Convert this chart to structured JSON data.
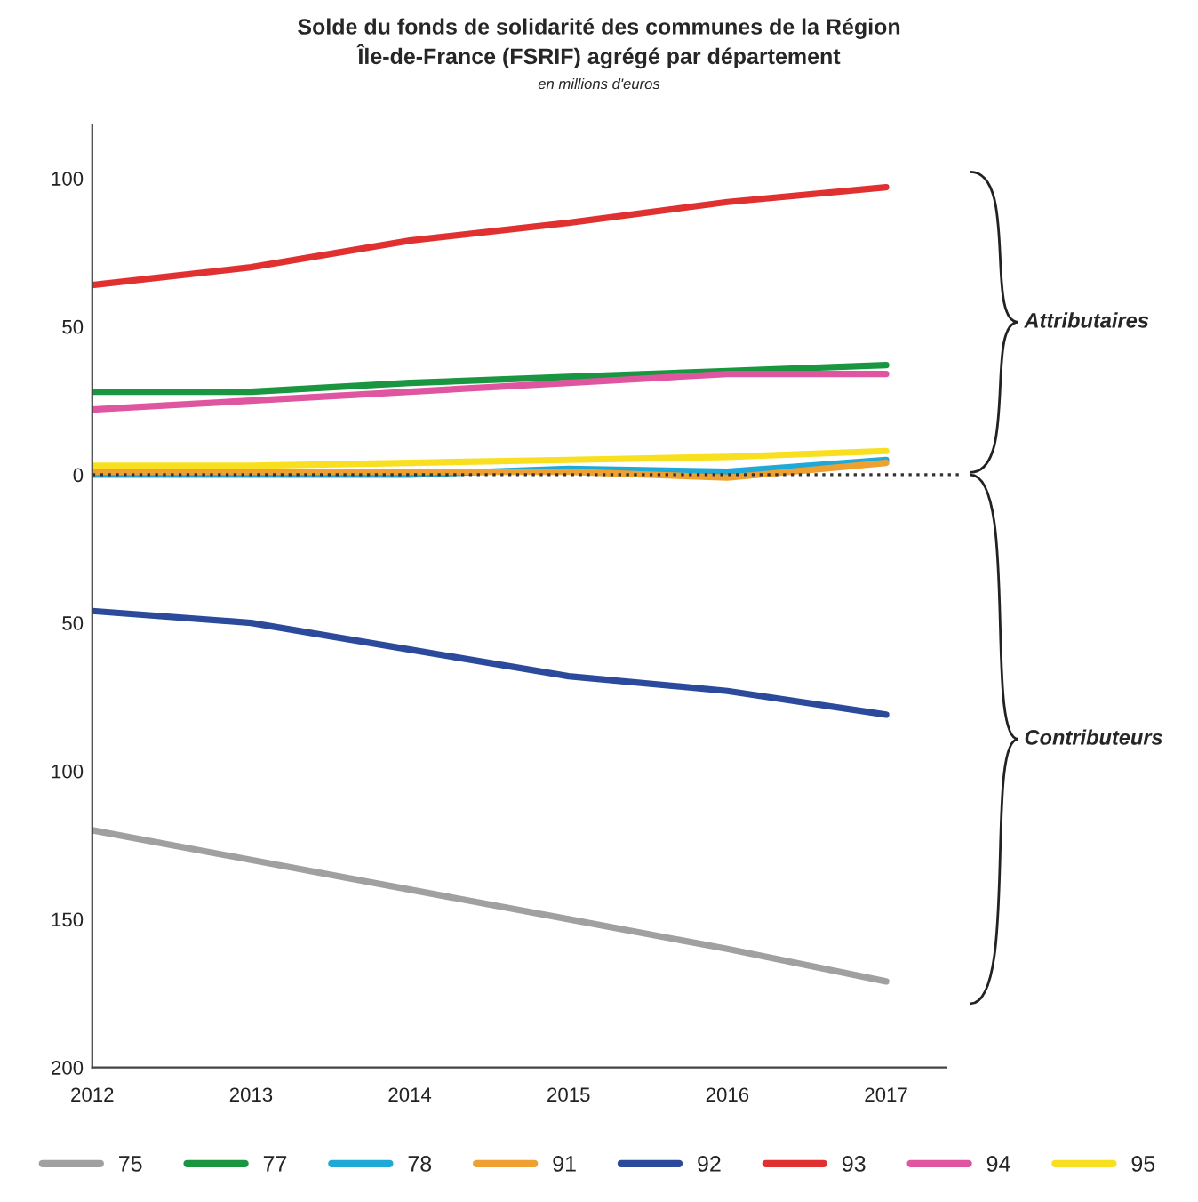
{
  "chart_data": {
    "type": "line",
    "title": "Solde du fonds de solidarité des communes de la Région\nÎle-de-France (FSRIF) agrégé par département",
    "subtitle": "en millions d'euros",
    "categories": [
      "2012",
      "2013",
      "2014",
      "2015",
      "2016",
      "2017"
    ],
    "series": [
      {
        "name": "75",
        "color": "#a0a0a0",
        "values": [
          -120,
          -130,
          -140,
          -150,
          -160,
          -171
        ]
      },
      {
        "name": "77",
        "color": "#1a9641",
        "values": [
          28,
          28,
          31,
          33,
          35,
          37
        ]
      },
      {
        "name": "78",
        "color": "#1fa9d6",
        "values": [
          0,
          0,
          0,
          2,
          1,
          5
        ]
      },
      {
        "name": "91",
        "color": "#f0a030",
        "values": [
          1,
          1,
          1,
          1,
          -1,
          4
        ]
      },
      {
        "name": "92",
        "color": "#2b4a9c",
        "values": [
          -46,
          -50,
          -59,
          -68,
          -73,
          -81
        ]
      },
      {
        "name": "93",
        "color": "#e03030",
        "values": [
          64,
          70,
          79,
          85,
          92,
          97
        ]
      },
      {
        "name": "94",
        "color": "#e055a0",
        "values": [
          22,
          25,
          28,
          31,
          34,
          34
        ]
      },
      {
        "name": "95",
        "color": "#f8e020",
        "values": [
          3,
          3,
          4,
          5,
          6,
          8
        ]
      }
    ],
    "ylim": [
      -200,
      118
    ],
    "yticks": [
      {
        "value": -200,
        "label": "200"
      },
      {
        "value": -150,
        "label": "150"
      },
      {
        "value": -100,
        "label": "100"
      },
      {
        "value": -50,
        "label": "50"
      },
      0,
      50,
      100
    ],
    "ref_lines": [
      {
        "axis": "y",
        "value": 0,
        "label": null,
        "color": "#333333",
        "line_style": "dotted"
      }
    ],
    "annotations": [
      "Attributaires",
      "Contributeurs"
    ],
    "legend": "bottom",
    "grid": false,
    "marker": "none",
    "line_style": "solid"
  }
}
